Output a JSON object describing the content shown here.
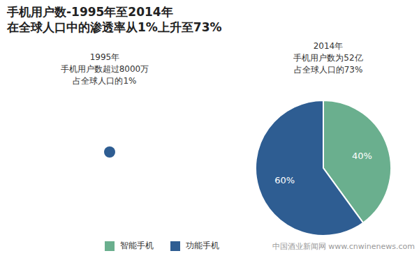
{
  "chart_data": {
    "type": "pie",
    "title": "手机用户数-1995年至2014年",
    "subtitle": "在全球人口中的渗透率从1%上升至73%",
    "categories": [
      "智能手机",
      "功能手机"
    ],
    "values": [
      40,
      60
    ],
    "value_labels": [
      "40%",
      "60%"
    ],
    "colors": [
      "#6aaf8e",
      "#2e5d92"
    ],
    "data_labels": true,
    "legend": "bottom",
    "annotations": [
      [
        "1995年",
        "手机用户数超过8000万",
        "占全球人口的1%"
      ],
      [
        "2014年",
        "手机用户数为52亿",
        "占全球人口的73%"
      ]
    ],
    "watermark": "中国酒业新闻网 www.cnwinenews.com"
  }
}
